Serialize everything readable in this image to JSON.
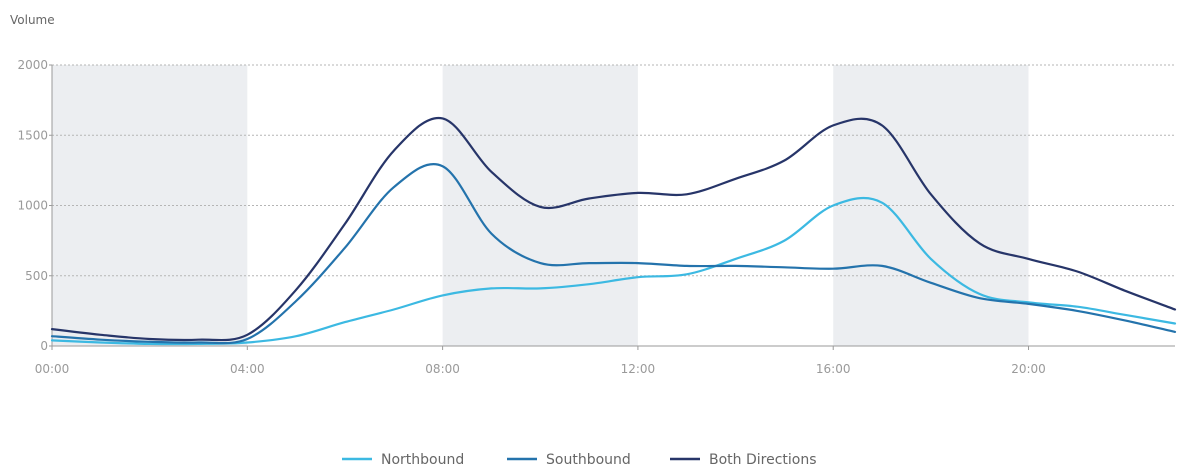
{
  "chart_data": {
    "type": "line",
    "ylabel": "Volume",
    "ylim": [
      0,
      2000
    ],
    "yticks": [
      0,
      500,
      1000,
      1500,
      2000
    ],
    "xlim": [
      0,
      23
    ],
    "xticks": [
      {
        "value": 0,
        "label": "00:00"
      },
      {
        "value": 4,
        "label": "04:00"
      },
      {
        "value": 8,
        "label": "08:00"
      },
      {
        "value": 12,
        "label": "12:00"
      },
      {
        "value": 16,
        "label": "16:00"
      },
      {
        "value": 20,
        "label": "20:00"
      }
    ],
    "shaded_bands": [
      [
        0,
        4
      ],
      [
        8,
        12
      ],
      [
        16,
        20
      ]
    ],
    "grid": true,
    "legend_position": "bottom-center",
    "x": [
      0,
      1,
      2,
      3,
      4,
      5,
      6,
      7,
      8,
      9,
      10,
      11,
      12,
      13,
      14,
      15,
      16,
      17,
      18,
      19,
      20,
      21,
      22,
      23
    ],
    "series": [
      {
        "name": "Northbound",
        "color": "#3cb9e2",
        "values": [
          40,
          25,
          15,
          15,
          25,
          70,
          170,
          260,
          360,
          410,
          410,
          440,
          490,
          510,
          620,
          750,
          1000,
          1020,
          620,
          370,
          310,
          280,
          220,
          160
        ]
      },
      {
        "name": "Southbound",
        "color": "#2473ac",
        "values": [
          70,
          45,
          30,
          25,
          50,
          320,
          700,
          1130,
          1280,
          800,
          590,
          590,
          590,
          570,
          570,
          560,
          550,
          570,
          450,
          340,
          300,
          250,
          180,
          100
        ]
      },
      {
        "name": "Both Directions",
        "color": "#273569",
        "values": [
          120,
          80,
          50,
          45,
          80,
          400,
          870,
          1390,
          1620,
          1240,
          990,
          1050,
          1090,
          1080,
          1190,
          1320,
          1570,
          1570,
          1080,
          730,
          620,
          530,
          390,
          260
        ]
      }
    ]
  },
  "colors": {
    "band": "#eceef1",
    "grid": "#b5b5b5",
    "tick_text": "#9a9a9a"
  }
}
